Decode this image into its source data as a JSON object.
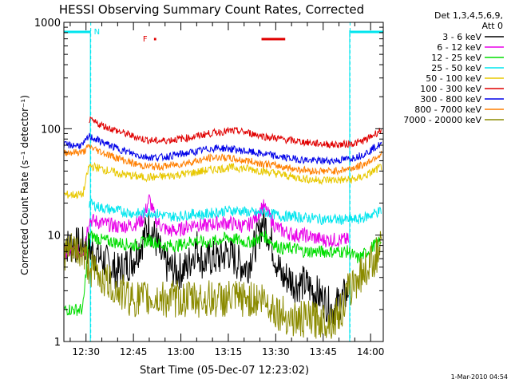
{
  "chart_data": {
    "type": "line",
    "title": "HESSI Observing Summary Count Rates, Corrected",
    "xlabel": "Start Time (05-Dec-07 12:23:02)",
    "ylabel": "Corrected Count Rate (s⁻¹ detector⁻¹)",
    "x_ticks": [
      "12:30",
      "12:45",
      "13:00",
      "13:15",
      "13:30",
      "13:45",
      "14:00"
    ],
    "x_tick_minutes": [
      450,
      465,
      480,
      495,
      510,
      525,
      540
    ],
    "xlim_minutes": [
      443,
      544
    ],
    "y_scale": "log",
    "ylim": [
      1,
      1000
    ],
    "y_ticks": [
      "1",
      "10",
      "100",
      "1000"
    ],
    "legend_header": [
      "Det 1,3,4,5,6,9,",
      "Att 0"
    ],
    "legend_placement": "right",
    "flags": {
      "N_label": "N",
      "F_label": "F",
      "night_intervals_minutes": [
        [
          443,
          451.5
        ],
        [
          533.5,
          544
        ]
      ],
      "flare_intervals_minutes": [
        [
          471.5,
          472.2
        ],
        [
          505.5,
          513
        ]
      ],
      "night_colour": "#00e5ee",
      "flare_colour": "#e00000"
    },
    "series": [
      {
        "name": "3 - 6 keV",
        "color": "#000000",
        "x": [
          443,
          449,
          451,
          455,
          460,
          465,
          468,
          470,
          472,
          474,
          476,
          479,
          482,
          485,
          487,
          489,
          492,
          495,
          498,
          501,
          504,
          506,
          508,
          510,
          512,
          514,
          516,
          519,
          522,
          525,
          528,
          531,
          533
        ],
        "y": [
          8,
          8,
          7.5,
          6,
          4.5,
          6,
          9,
          13,
          9,
          6,
          5,
          4.5,
          5,
          8,
          5.5,
          6,
          6,
          7,
          5.5,
          5,
          9,
          14,
          10,
          6,
          4,
          4,
          3.5,
          3.5,
          3,
          2.5,
          2,
          2.5,
          3
        ]
      },
      {
        "name": "6 - 12 keV",
        "color": "#e800e8",
        "x": [
          443,
          449,
          451,
          455,
          460,
          465,
          468,
          470,
          472,
          474,
          476,
          479,
          482,
          485,
          487,
          489,
          492,
          495,
          498,
          501,
          504,
          506,
          508,
          510,
          512,
          514,
          516,
          519,
          522,
          525,
          528,
          531,
          533
        ],
        "y": [
          7,
          7,
          14,
          13,
          12,
          12.5,
          14,
          22,
          14,
          12,
          11,
          11,
          12,
          13,
          12,
          12.5,
          13,
          13,
          12.5,
          12,
          15,
          19,
          15,
          12,
          11,
          10.5,
          10,
          10,
          9.5,
          9,
          9,
          9,
          9
        ]
      },
      {
        "name": "12 - 25 keV",
        "color": "#00dd00",
        "x": [
          443,
          449,
          451,
          455,
          460,
          465,
          468,
          470,
          472,
          474,
          476,
          479,
          482,
          485,
          487,
          489,
          492,
          495,
          498,
          501,
          504,
          506,
          508,
          510,
          512,
          514,
          516,
          519,
          522,
          525,
          528,
          531,
          533,
          536,
          539,
          541,
          543.5
        ],
        "y": [
          2,
          2,
          10,
          9,
          8.5,
          8,
          8.5,
          9,
          8.5,
          8,
          8,
          8,
          8.5,
          9,
          8.5,
          8.5,
          9,
          9.5,
          9,
          8.5,
          9,
          10,
          9,
          8,
          7.5,
          7.5,
          7.5,
          7,
          7,
          7,
          7,
          7,
          7,
          6,
          7,
          8,
          9
        ]
      },
      {
        "name": "25 - 50 keV",
        "color": "#00e5ee",
        "x": [
          451,
          455,
          460,
          465,
          468,
          470,
          472,
          474,
          476,
          479,
          482,
          485,
          487,
          489,
          492,
          495,
          498,
          501,
          504,
          506,
          508,
          510,
          512,
          514,
          516,
          519,
          522,
          525,
          528,
          531,
          533,
          536,
          539,
          541,
          543.5
        ],
        "y": [
          20,
          18,
          17,
          16,
          16,
          16.5,
          16,
          15.5,
          15,
          15,
          15.5,
          16,
          15.5,
          16,
          16.5,
          17,
          17,
          16.5,
          16,
          16.5,
          16,
          15.5,
          15,
          15,
          15,
          14.5,
          14.5,
          14,
          14,
          14,
          14,
          14,
          15,
          16,
          17
        ]
      },
      {
        "name": "50 - 100 keV",
        "color": "#e8c800",
        "x": [
          443,
          449,
          451,
          455,
          460,
          465,
          468,
          470,
          472,
          474,
          476,
          479,
          482,
          485,
          487,
          489,
          492,
          495,
          498,
          501,
          504,
          506,
          508,
          510,
          512,
          514,
          516,
          519,
          522,
          525,
          528,
          531,
          533,
          536,
          539,
          541,
          543.5
        ],
        "y": [
          24,
          24,
          45,
          42,
          38,
          36,
          35,
          35,
          35,
          35.5,
          36,
          37,
          38,
          39,
          40,
          41,
          42,
          43,
          43,
          42,
          41,
          40,
          39,
          38,
          37,
          36,
          35,
          34,
          33,
          33,
          33,
          33,
          33,
          34,
          37,
          40,
          44
        ]
      },
      {
        "name": "100 - 300 keV",
        "color": "#e00000",
        "x": [
          451,
          455,
          460,
          465,
          468,
          470,
          472,
          474,
          476,
          479,
          482,
          485,
          487,
          489,
          492,
          495,
          498,
          501,
          504,
          506,
          508,
          510,
          512,
          514,
          516,
          519,
          522,
          525,
          528,
          531,
          533,
          536,
          539,
          541,
          543.5
        ],
        "y": [
          120,
          108,
          95,
          85,
          80,
          78,
          77,
          77,
          78,
          80,
          82,
          85,
          88,
          90,
          93,
          95,
          95,
          92,
          88,
          85,
          83,
          82,
          80,
          78,
          77,
          75,
          73,
          72,
          71,
          71,
          72,
          74,
          80,
          88,
          98
        ]
      },
      {
        "name": "300 - 800 keV",
        "color": "#0000e8",
        "x": [
          443,
          449,
          451,
          455,
          460,
          465,
          468,
          470,
          472,
          474,
          476,
          479,
          482,
          485,
          487,
          489,
          492,
          495,
          498,
          501,
          504,
          506,
          508,
          510,
          512,
          514,
          516,
          519,
          522,
          525,
          528,
          531,
          533,
          536,
          539,
          541,
          543.5
        ],
        "y": [
          70,
          70,
          85,
          75,
          65,
          58,
          55,
          54,
          54,
          54,
          55,
          57,
          59,
          61,
          63,
          65,
          66,
          65,
          63,
          61,
          59,
          58,
          57,
          55,
          54,
          53,
          52,
          51,
          50,
          50,
          50,
          51,
          52,
          55,
          60,
          66,
          72
        ]
      },
      {
        "name": "800 - 7000 keV",
        "color": "#ff7f00",
        "x": [
          443,
          449,
          451,
          455,
          460,
          465,
          468,
          470,
          472,
          474,
          476,
          479,
          482,
          485,
          487,
          489,
          492,
          495,
          498,
          501,
          504,
          506,
          508,
          510,
          512,
          514,
          516,
          519,
          522,
          525,
          528,
          531,
          533,
          536,
          539,
          541,
          543.5
        ],
        "y": [
          60,
          60,
          68,
          60,
          53,
          47,
          45,
          44,
          44,
          44,
          45,
          46,
          48,
          50,
          51,
          53,
          54,
          53,
          51,
          50,
          48,
          47,
          46,
          45,
          44,
          43,
          42,
          41,
          40,
          40,
          40,
          41,
          42,
          44,
          48,
          53,
          58
        ]
      },
      {
        "name": "7000 - 20000 keV",
        "color": "#8b8b00",
        "x": [
          443,
          449,
          451,
          455,
          460,
          465,
          468,
          470,
          472,
          474,
          476,
          479,
          482,
          485,
          487,
          489,
          492,
          495,
          498,
          501,
          504,
          506,
          508,
          510,
          512,
          514,
          516,
          519,
          522,
          525,
          528,
          531,
          533,
          536,
          539,
          541,
          543.5
        ],
        "y": [
          7,
          7,
          5,
          4,
          3,
          2.5,
          2.5,
          2.5,
          2.5,
          2.5,
          2.5,
          2.5,
          2.5,
          2.5,
          2.5,
          2.5,
          2.5,
          2.5,
          2.5,
          2.5,
          2.5,
          2.5,
          2.2,
          2,
          1.8,
          1.7,
          1.6,
          1.6,
          1.6,
          1.6,
          1.6,
          2,
          3,
          4,
          5,
          6,
          7.5
        ]
      }
    ]
  },
  "timestamp": "1-Mar-2010 04:54"
}
